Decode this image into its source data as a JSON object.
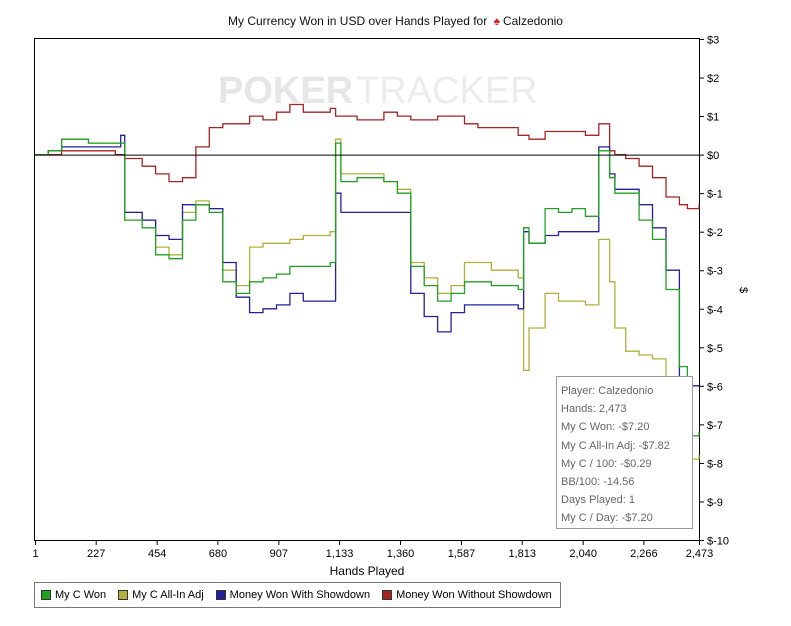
{
  "title": {
    "text": "My Currency Won in USD over Hands Played for",
    "player": "Calzedonio",
    "spade_icon": "spade-icon"
  },
  "watermark": {
    "poker": "POKER",
    "tracker": "TRACKER"
  },
  "colors": {
    "my_c_won": "#22a022",
    "my_c_allin_adj": "#b0b03a",
    "money_won_with_showdown": "#22229e",
    "money_won_without_showdown": "#aa2222",
    "zero_line": "#000000",
    "spade": "#d02020"
  },
  "tooltip": {
    "player": "Player: Calzedonio",
    "hands": "Hands: 2,473",
    "my_c_won": "My C Won: -$7.20",
    "all_in_adj": "My C All-In Adj: -$7.82",
    "per_100": "My C / 100: -$0.29",
    "bb_100": "BB/100: -14.56",
    "days_played": "Days Played: 1",
    "per_day": "My C / Day: -$7.20"
  },
  "chart_data": {
    "type": "line",
    "title": "My Currency Won in USD over Hands Played for Calzedonio",
    "xlabel": "Hands Played",
    "ylabel": "$",
    "xlim": [
      1,
      2473
    ],
    "ylim": [
      -10,
      3
    ],
    "x_ticks": [
      1,
      227,
      454,
      680,
      907,
      1133,
      1360,
      1587,
      1813,
      2040,
      2266,
      2473
    ],
    "x_tick_labels": [
      "1",
      "227",
      "454",
      "680",
      "907",
      "1,133",
      "1,360",
      "1,587",
      "1,813",
      "2,040",
      "2,266",
      "2,473"
    ],
    "y_ticks": [
      3,
      2,
      1,
      0,
      -1,
      -2,
      -3,
      -4,
      -5,
      -6,
      -7,
      -8,
      -9,
      -10
    ],
    "y_tick_labels": [
      "$3",
      "$2",
      "$1",
      "$0",
      "$-1",
      "$-2",
      "$-3",
      "$-4",
      "$-5",
      "$-6",
      "$-7",
      "$-8",
      "$-9",
      "$-10"
    ],
    "grid": false,
    "legend_position": "bottom-left",
    "series": [
      {
        "name": "My C Won",
        "color": "#22a022",
        "x": [
          1,
          50,
          100,
          200,
          300,
          320,
          335,
          400,
          450,
          500,
          550,
          600,
          650,
          700,
          750,
          800,
          850,
          900,
          950,
          1000,
          1100,
          1120,
          1140,
          1200,
          1300,
          1350,
          1400,
          1450,
          1500,
          1550,
          1600,
          1650,
          1700,
          1800,
          1820,
          1840,
          1900,
          1950,
          2000,
          2050,
          2100,
          2140,
          2160,
          2200,
          2250,
          2300,
          2350,
          2400,
          2430,
          2473
        ],
        "y": [
          0,
          0.1,
          0.4,
          0.3,
          0.3,
          0.3,
          -1.7,
          -1.9,
          -2.6,
          -2.7,
          -1.7,
          -1.3,
          -1.5,
          -3.3,
          -3.6,
          -3.3,
          -3.2,
          -3.1,
          -2.9,
          -2.9,
          -2.8,
          0.3,
          -0.7,
          -0.6,
          -0.7,
          -1.0,
          -2.9,
          -3.4,
          -3.8,
          -3.6,
          -3.3,
          -3.3,
          -3.4,
          -3.5,
          -1.9,
          -2.3,
          -1.4,
          -1.5,
          -1.4,
          -1.6,
          0.1,
          -0.6,
          -1.0,
          -1.0,
          -1.7,
          -2.2,
          -3.5,
          -5.5,
          -7.3,
          -7.2
        ]
      },
      {
        "name": "My C All-In Adj",
        "color": "#b0b03a",
        "x": [
          1,
          50,
          100,
          200,
          300,
          320,
          335,
          400,
          450,
          500,
          550,
          600,
          650,
          700,
          750,
          800,
          850,
          900,
          950,
          1000,
          1100,
          1120,
          1140,
          1200,
          1300,
          1350,
          1400,
          1450,
          1500,
          1550,
          1600,
          1650,
          1700,
          1800,
          1820,
          1840,
          1900,
          1950,
          2000,
          2050,
          2100,
          2140,
          2160,
          2200,
          2250,
          2300,
          2350,
          2400,
          2430,
          2473
        ],
        "y": [
          0,
          0.1,
          0.4,
          0.3,
          0.3,
          0.3,
          -1.5,
          -1.7,
          -2.4,
          -2.6,
          -1.5,
          -1.2,
          -1.4,
          -3.0,
          -3.4,
          -2.4,
          -2.3,
          -2.3,
          -2.2,
          -2.1,
          -2.0,
          0.4,
          -0.5,
          -0.5,
          -0.7,
          -0.9,
          -2.8,
          -3.2,
          -3.6,
          -3.4,
          -2.8,
          -2.8,
          -3.0,
          -3.2,
          -5.6,
          -4.5,
          -3.6,
          -3.8,
          -3.8,
          -3.9,
          -2.2,
          -3.3,
          -4.5,
          -5.1,
          -5.2,
          -5.3,
          -6.0,
          -8.6,
          -7.9,
          -7.8
        ]
      },
      {
        "name": "Money Won With Showdown",
        "color": "#22229e",
        "x": [
          1,
          50,
          100,
          200,
          300,
          320,
          335,
          400,
          450,
          500,
          550,
          600,
          650,
          700,
          750,
          800,
          850,
          900,
          950,
          1000,
          1100,
          1120,
          1140,
          1200,
          1300,
          1350,
          1400,
          1450,
          1500,
          1550,
          1600,
          1650,
          1700,
          1800,
          1820,
          1840,
          1900,
          1950,
          2000,
          2050,
          2100,
          2140,
          2160,
          2200,
          2250,
          2300,
          2350,
          2400,
          2430,
          2473
        ],
        "y": [
          0,
          0.1,
          0.2,
          0.2,
          0.2,
          0.5,
          -1.5,
          -1.7,
          -2.1,
          -2.2,
          -1.3,
          -1.3,
          -1.4,
          -2.8,
          -3.7,
          -4.1,
          -4.0,
          -3.9,
          -3.6,
          -3.8,
          -3.8,
          -1.0,
          -1.5,
          -1.5,
          -1.5,
          -1.5,
          -3.6,
          -4.2,
          -4.6,
          -4.1,
          -3.9,
          -3.9,
          -3.9,
          -4.0,
          -2.0,
          -2.3,
          -2.1,
          -2.0,
          -2.0,
          -2.0,
          0.2,
          -0.5,
          -0.9,
          -0.9,
          -1.3,
          -1.9,
          -3.0,
          -6.0,
          -6.0,
          -6.0
        ]
      },
      {
        "name": "Money Won Without Showdown",
        "color": "#aa2222",
        "x": [
          1,
          50,
          100,
          200,
          300,
          320,
          335,
          400,
          450,
          500,
          550,
          600,
          650,
          700,
          750,
          800,
          850,
          900,
          950,
          1000,
          1100,
          1120,
          1140,
          1200,
          1300,
          1350,
          1400,
          1450,
          1500,
          1550,
          1600,
          1650,
          1700,
          1800,
          1820,
          1840,
          1900,
          1950,
          2000,
          2050,
          2100,
          2140,
          2160,
          2200,
          2250,
          2300,
          2350,
          2400,
          2430,
          2473
        ],
        "y": [
          0,
          0.0,
          0.1,
          0.1,
          0.0,
          0.0,
          -0.1,
          -0.3,
          -0.5,
          -0.7,
          -0.6,
          0.2,
          0.7,
          0.8,
          0.8,
          1.0,
          0.9,
          1.1,
          1.3,
          1.1,
          1.2,
          1.0,
          1.0,
          0.9,
          1.1,
          1.0,
          0.9,
          0.9,
          1.0,
          1.0,
          0.8,
          0.7,
          0.7,
          0.5,
          0.5,
          0.4,
          0.6,
          0.6,
          0.6,
          0.5,
          0.8,
          0.1,
          0.0,
          -0.1,
          -0.3,
          -0.6,
          -1.1,
          -1.3,
          -1.4,
          -1.3
        ]
      }
    ]
  }
}
